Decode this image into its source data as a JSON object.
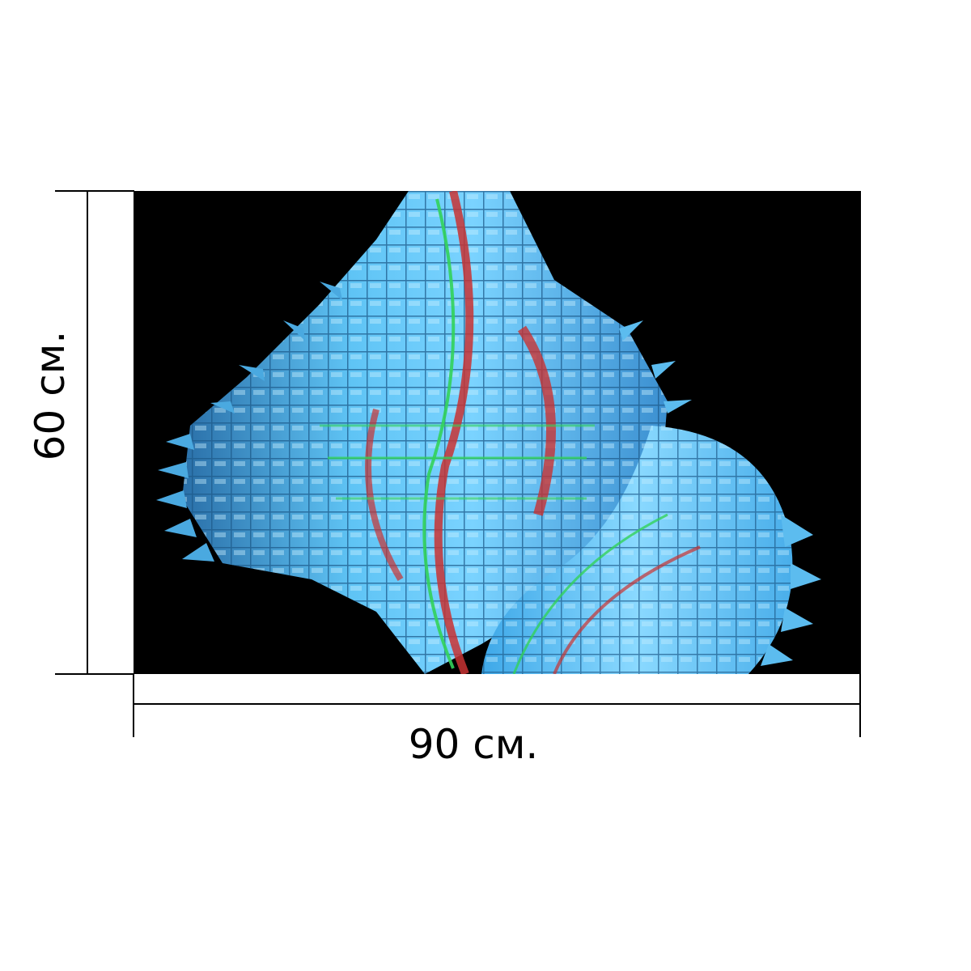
{
  "dimensions": {
    "width_label": "90 см.",
    "height_label": "60 см."
  },
  "colors": {
    "background": "#ffffff",
    "artwork_background": "#000000",
    "artwork_primary": "#46b4f0",
    "artwork_accent_red": "#c83232",
    "artwork_accent_green": "#32d25a",
    "dimension_lines": "#000000"
  }
}
